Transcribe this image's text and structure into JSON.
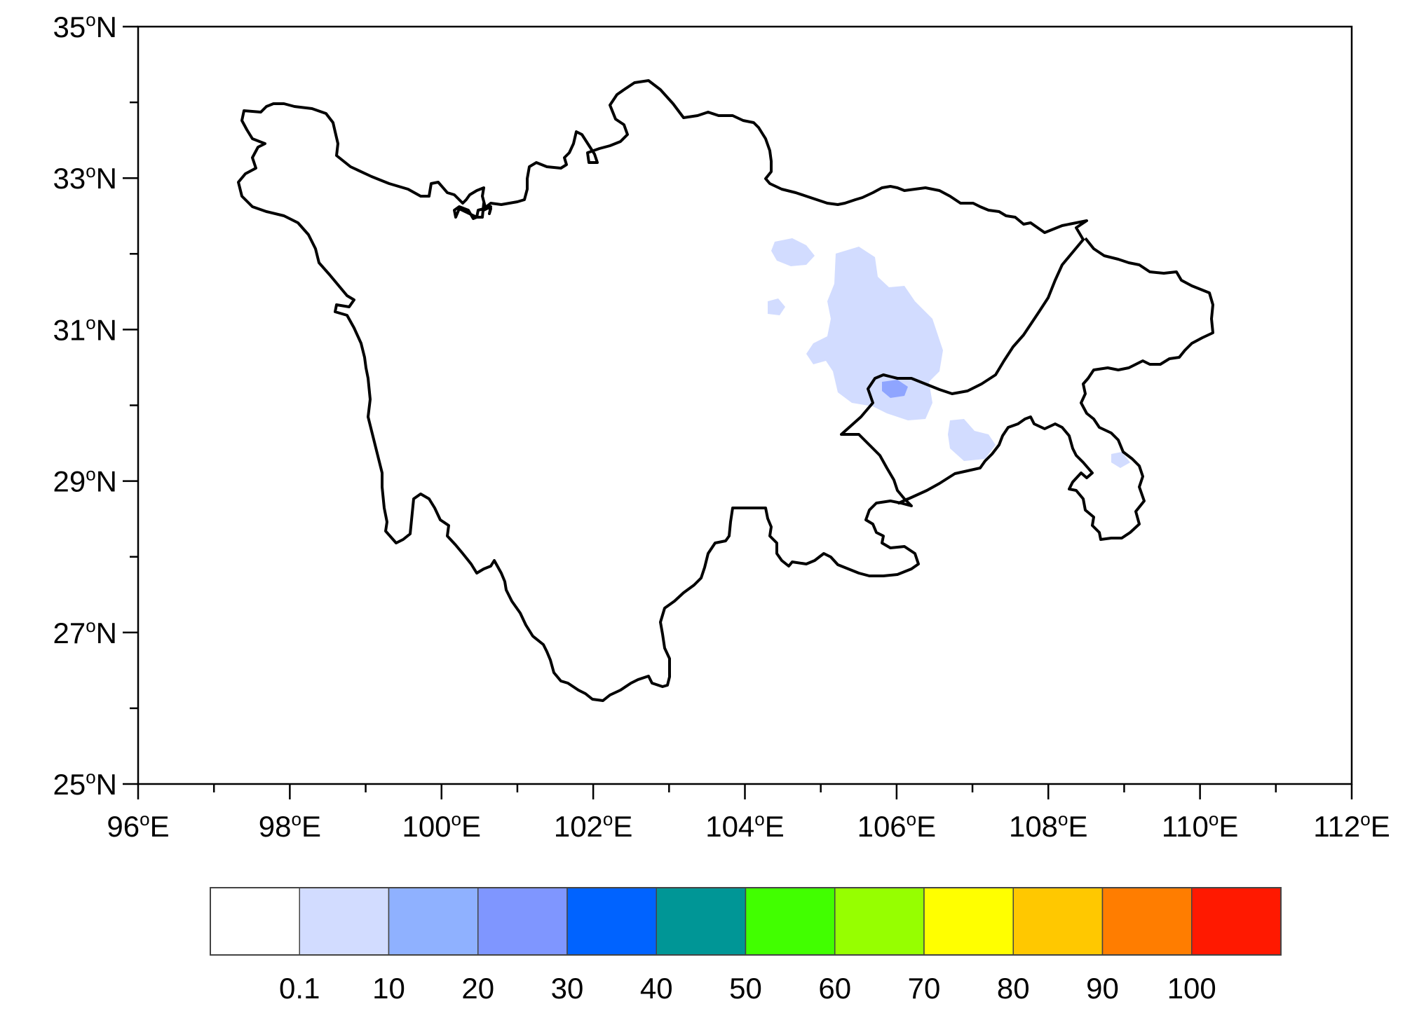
{
  "map": {
    "lon_range": [
      96,
      112
    ],
    "lat_range": [
      25,
      35
    ],
    "lon_major_ticks": [
      96,
      98,
      100,
      102,
      104,
      106,
      108,
      110,
      112
    ],
    "lat_major_ticks": [
      25,
      27,
      29,
      31,
      33,
      35
    ],
    "lon_tick_labels": [
      "96",
      "98",
      "100",
      "102",
      "104",
      "106",
      "108",
      "110",
      "112"
    ],
    "lat_tick_labels": [
      "25",
      "27",
      "29",
      "31",
      "33",
      "35"
    ],
    "lon_suffix": "E",
    "lat_suffix": "N",
    "degree_symbol": "o",
    "border_color": "#000000",
    "shaded_regions_note_level": "0.1-10 and 20-30 classes present near 104-107E, 29.5-32N"
  },
  "colorbar": {
    "colors": [
      "#ffffff",
      "#d2dcff",
      "#8fb1ff",
      "#7f96ff",
      "#0063ff",
      "#009696",
      "#41ff00",
      "#96ff00",
      "#ffff00",
      "#ffc800",
      "#ff7d00",
      "#ff1900"
    ],
    "labels": [
      "0.1",
      "10",
      "20",
      "30",
      "40",
      "50",
      "60",
      "70",
      "80",
      "90",
      "100"
    ]
  }
}
